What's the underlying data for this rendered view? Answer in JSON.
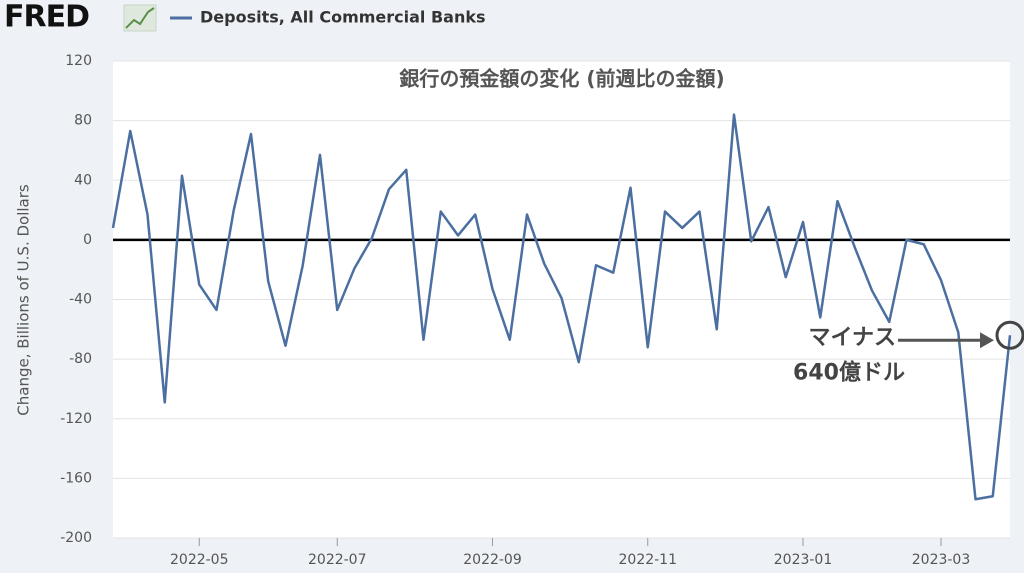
{
  "chart_data": {
    "type": "line",
    "logo": "FRED",
    "title": "銀行の預金額の変化 (前週比の金額)",
    "y_label": "Change, Billions of U.S. Dollars",
    "categories": [
      null,
      null,
      null,
      null,
      null,
      "2022-05",
      null,
      null,
      null,
      null,
      null,
      null,
      null,
      "2022-07",
      null,
      null,
      null,
      null,
      null,
      null,
      null,
      null,
      "2022-09",
      null,
      null,
      null,
      null,
      null,
      null,
      null,
      null,
      "2022-11",
      null,
      null,
      null,
      null,
      null,
      null,
      null,
      null,
      "2023-01",
      null,
      null,
      null,
      null,
      null,
      null,
      null,
      "2023-03",
      null,
      null,
      null,
      null
    ],
    "series": [
      {
        "name": "Deposits, All Commercial Banks",
        "color": "#4b6fa0",
        "values": [
          8,
          73,
          17,
          -109,
          43,
          -30,
          -47,
          20,
          71,
          -28,
          -71,
          -17,
          57,
          -47,
          -19,
          1,
          34,
          47,
          -67,
          19,
          3,
          17,
          -33,
          -67,
          17,
          -16,
          -39,
          -82,
          -17,
          -22,
          35,
          -72,
          19,
          8,
          19,
          -60,
          84,
          -1,
          22,
          -25,
          12,
          -52,
          26,
          -5,
          -34,
          -55,
          0,
          -3,
          -27,
          -62,
          -174,
          -172,
          -64
        ]
      }
    ],
    "ylim": [
      -200,
      120
    ],
    "yticks": [
      -200,
      -160,
      -120,
      -80,
      -40,
      0,
      40,
      80,
      120
    ],
    "grid": true,
    "annotation": [
      "マイナス",
      "640億ドル"
    ]
  }
}
